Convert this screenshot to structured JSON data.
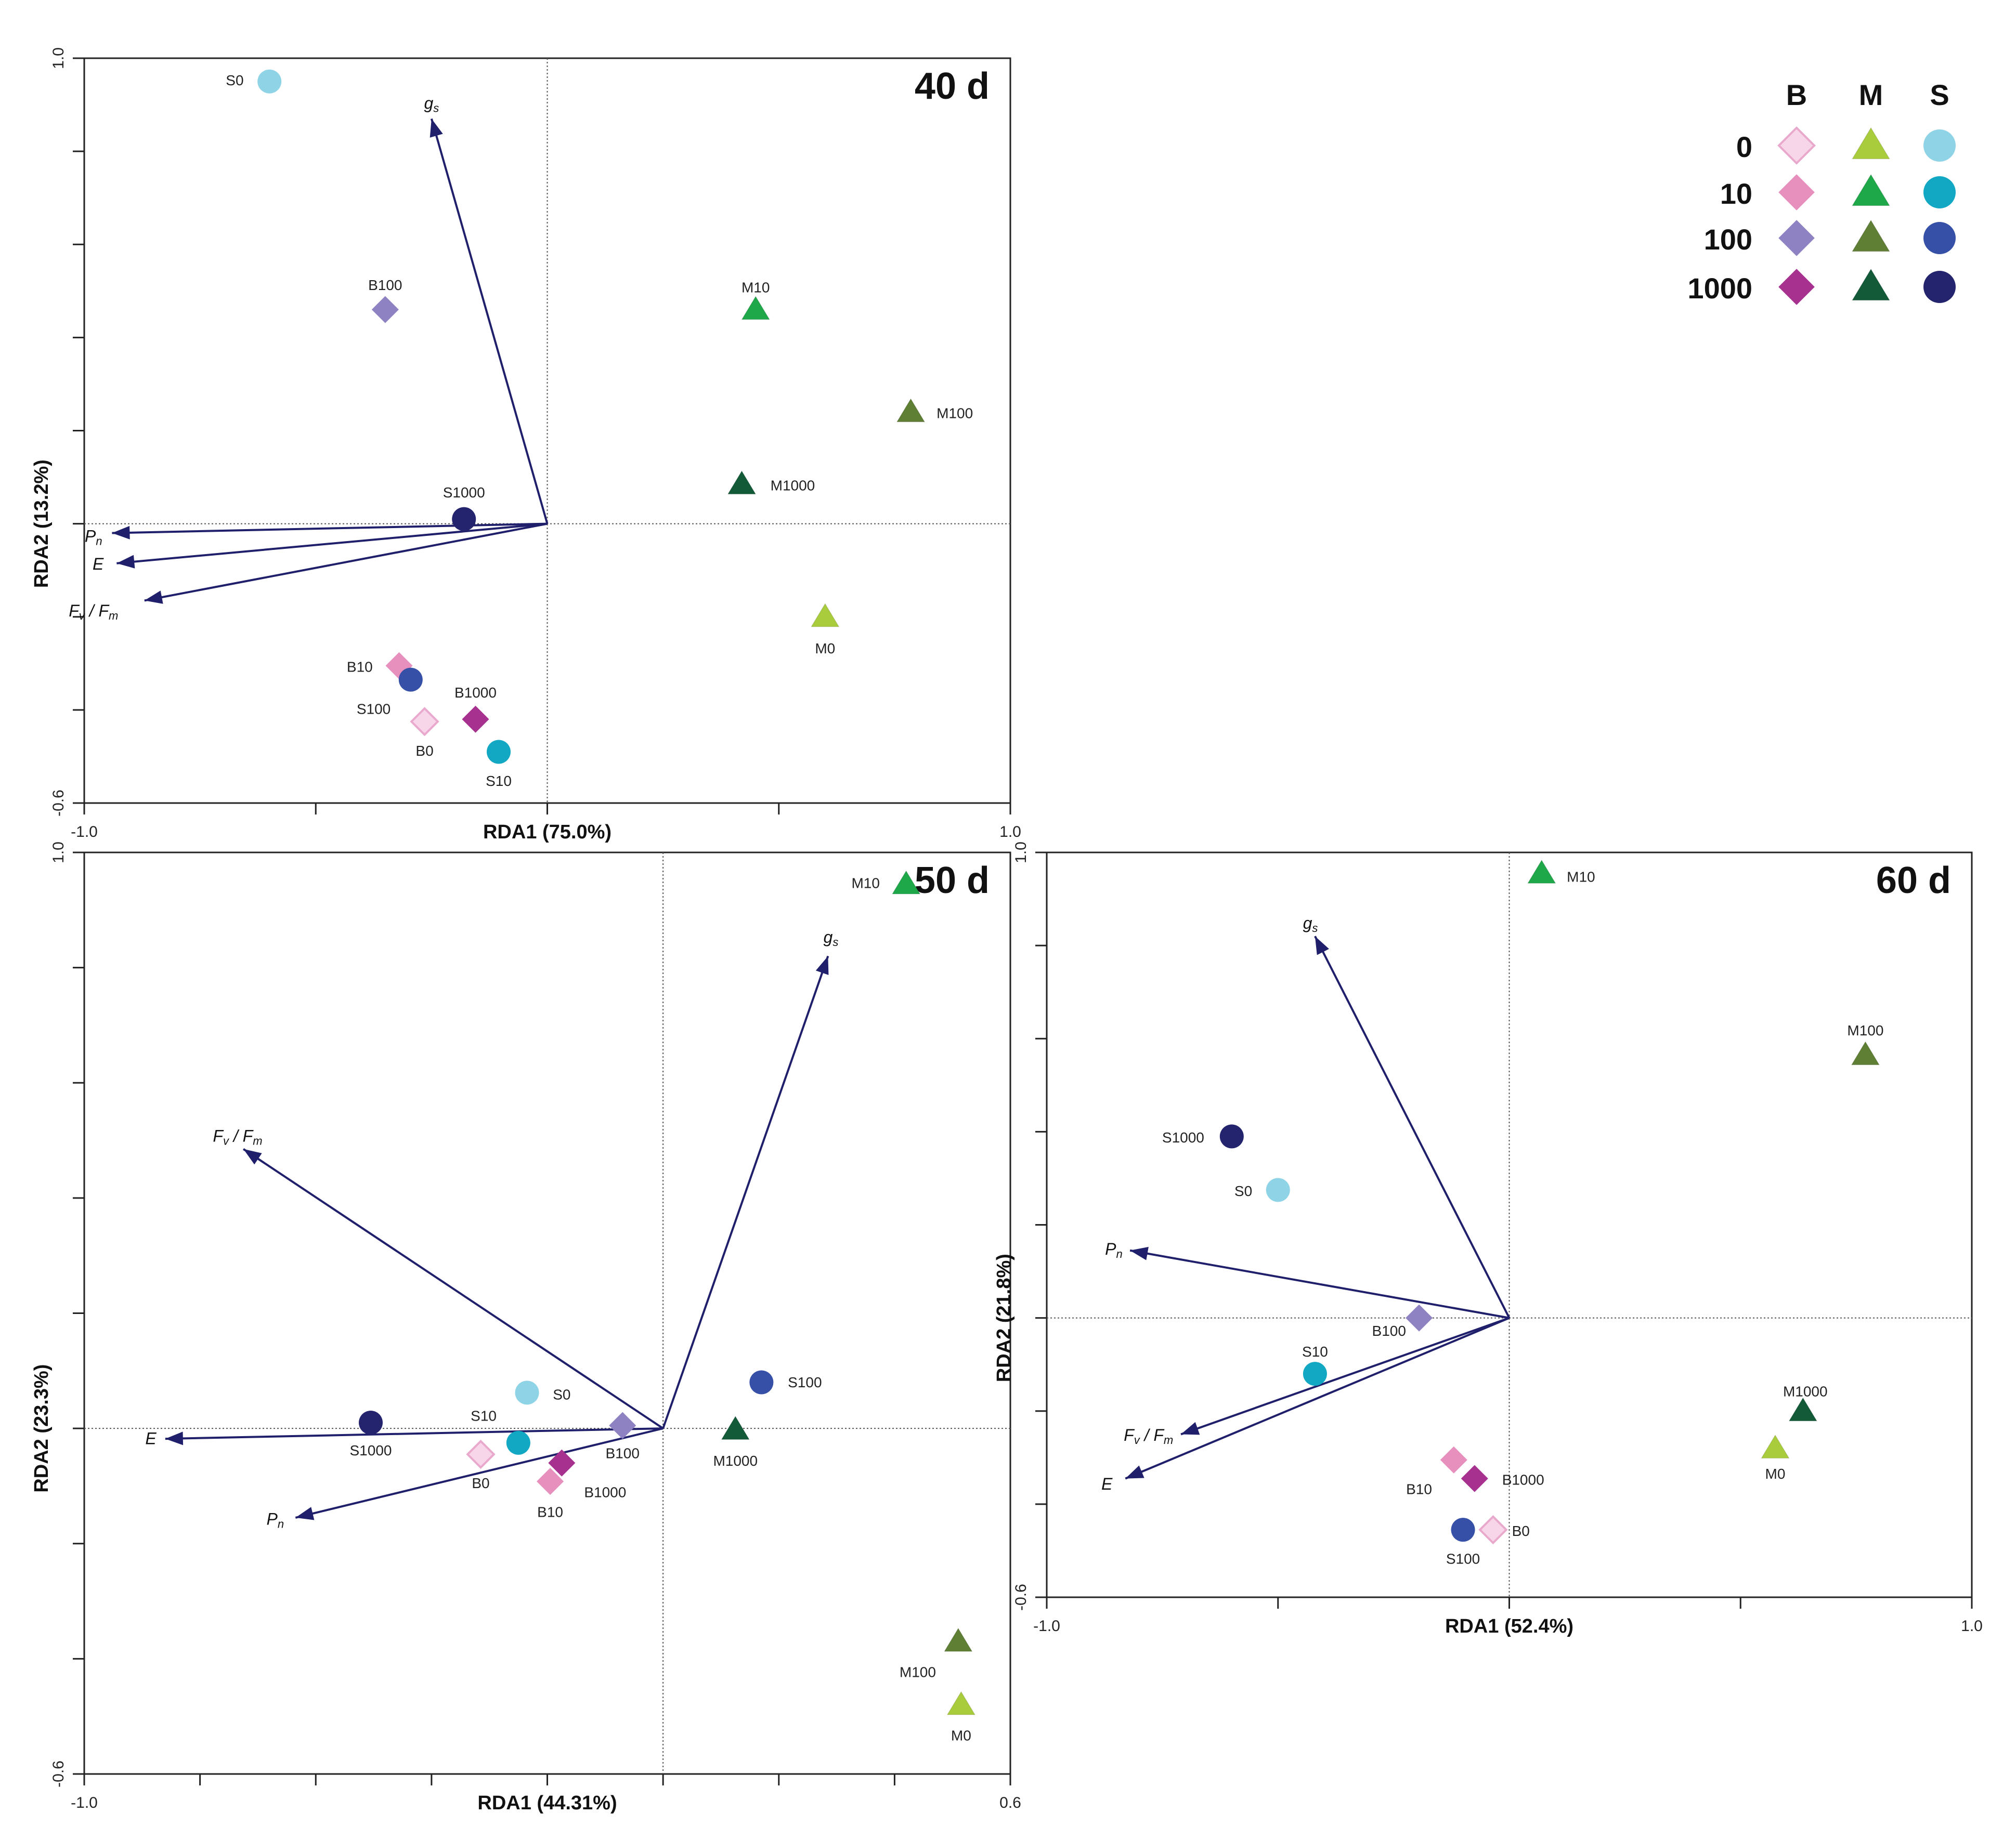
{
  "chart_data": [
    {
      "type": "scatter",
      "subtype": "rda-biplot",
      "title": "40 d",
      "xlabel": "RDA1 (75.0%)",
      "ylabel": "RDA2 (13.2%)",
      "xlim": [
        -1.0,
        1.0
      ],
      "ylim": [
        -0.6,
        1.0
      ],
      "x_tick_labels": [
        {
          "v": -1.0,
          "label": "-1.0"
        },
        {
          "v": 1.0,
          "label": "1.0"
        }
      ],
      "y_tick_labels": [
        {
          "v": 1.0,
          "label": "1.0"
        },
        {
          "v": -0.6,
          "label": "-0.6"
        }
      ],
      "x_minor_ticks": [
        -0.5,
        0,
        0.5
      ],
      "y_minor_ticks": [
        -0.4,
        -0.2,
        0,
        0.2,
        0.4,
        0.6,
        0.8
      ],
      "arrows": [
        {
          "label": "gs",
          "main": "g",
          "sub": "s",
          "x": -0.25,
          "y": 0.87,
          "lx": -0.25,
          "ly": 0.9
        },
        {
          "label": "Pn",
          "main": "P",
          "sub": "n",
          "x": -0.94,
          "y": -0.02,
          "lx": -0.98,
          "ly": -0.03
        },
        {
          "label": "E",
          "main": "E",
          "sub": "",
          "x": -0.93,
          "y": -0.085,
          "lx": -0.97,
          "ly": -0.09
        },
        {
          "label": "Fv / Fm",
          "main": "F",
          "sub": "v",
          "main2": "F",
          "sub2": "m",
          "x": -0.87,
          "y": -0.165,
          "lx": -0.98,
          "ly": -0.19
        }
      ],
      "points": [
        {
          "label": "S0",
          "group": "S",
          "level": "0",
          "x": -0.6,
          "y": 0.95,
          "lx": -0.675,
          "ly": 0.95
        },
        {
          "label": "B100",
          "group": "B",
          "level": "100",
          "x": -0.35,
          "y": 0.46,
          "lx": -0.35,
          "ly": 0.51
        },
        {
          "label": "M10",
          "group": "M",
          "level": "10",
          "x": 0.45,
          "y": 0.46,
          "lx": 0.45,
          "ly": 0.505
        },
        {
          "label": "M100",
          "group": "M",
          "level": "100",
          "x": 0.785,
          "y": 0.24,
          "lx": 0.88,
          "ly": 0.235
        },
        {
          "label": "M1000",
          "group": "M",
          "level": "1000",
          "x": 0.42,
          "y": 0.085,
          "lx": 0.53,
          "ly": 0.08
        },
        {
          "label": "S1000",
          "group": "S",
          "level": "1000",
          "x": -0.18,
          "y": 0.01,
          "lx": -0.18,
          "ly": 0.065
        },
        {
          "label": "M0",
          "group": "M",
          "level": "0",
          "x": 0.6,
          "y": -0.2,
          "lx": 0.6,
          "ly": -0.27
        },
        {
          "label": "B10",
          "group": "B",
          "level": "10",
          "x": -0.32,
          "y": -0.305,
          "lx": -0.405,
          "ly": -0.31
        },
        {
          "label": "S100",
          "group": "S",
          "level": "100",
          "x": -0.295,
          "y": -0.335,
          "lx": -0.375,
          "ly": -0.4
        },
        {
          "label": "B1000",
          "group": "B",
          "level": "1000",
          "x": -0.155,
          "y": -0.42,
          "lx": -0.155,
          "ly": -0.365
        },
        {
          "label": "B0",
          "group": "B",
          "level": "0",
          "x": -0.265,
          "y": -0.425,
          "lx": -0.265,
          "ly": -0.49
        },
        {
          "label": "S10",
          "group": "S",
          "level": "10",
          "x": -0.105,
          "y": -0.49,
          "lx": -0.105,
          "ly": -0.555
        }
      ]
    },
    {
      "type": "scatter",
      "subtype": "rda-biplot",
      "title": "50 d",
      "xlabel": "RDA1 (44.31%)",
      "ylabel": "RDA2 (23.3%)",
      "xlim": [
        -1.0,
        0.6
      ],
      "ylim": [
        -0.6,
        1.0
      ],
      "x_tick_labels": [
        {
          "v": -1.0,
          "label": "-1.0"
        },
        {
          "v": 0.6,
          "label": "0.6"
        }
      ],
      "y_tick_labels": [
        {
          "v": 1.0,
          "label": "1.0"
        },
        {
          "v": -0.6,
          "label": "-0.6"
        }
      ],
      "x_minor_ticks": [
        -0.8,
        -0.6,
        -0.4,
        -0.2,
        0,
        0.2,
        0.4
      ],
      "y_minor_ticks": [
        -0.4,
        -0.2,
        0,
        0.2,
        0.4,
        0.6,
        0.8
      ],
      "arrows": [
        {
          "label": "gs",
          "main": "g",
          "sub": "s",
          "x": 0.285,
          "y": 0.82,
          "lx": 0.29,
          "ly": 0.85
        },
        {
          "label": "Fv / Fm",
          "main": "F",
          "sub": "v",
          "main2": "F",
          "sub2": "m",
          "x": -0.725,
          "y": 0.485,
          "lx": -0.735,
          "ly": 0.505
        },
        {
          "label": "E",
          "main": "E",
          "sub": "",
          "x": -0.86,
          "y": -0.018,
          "lx": -0.885,
          "ly": -0.02
        },
        {
          "label": "Pn",
          "main": "P",
          "sub": "n",
          "x": -0.635,
          "y": -0.155,
          "lx": -0.67,
          "ly": -0.16
        }
      ],
      "points": [
        {
          "label": "M10",
          "group": "M",
          "level": "10",
          "x": 0.42,
          "y": 0.945,
          "lx": 0.35,
          "ly": 0.945
        },
        {
          "label": "S100",
          "group": "S",
          "level": "100",
          "x": 0.17,
          "y": 0.08,
          "lx": 0.245,
          "ly": 0.078
        },
        {
          "label": "S0",
          "group": "S",
          "level": "0",
          "x": -0.235,
          "y": 0.062,
          "lx": -0.175,
          "ly": 0.057
        },
        {
          "label": "S1000",
          "group": "S",
          "level": "1000",
          "x": -0.505,
          "y": 0.01,
          "lx": -0.505,
          "ly": -0.04
        },
        {
          "label": "S10",
          "group": "S",
          "level": "10",
          "x": -0.25,
          "y": -0.025,
          "lx": -0.31,
          "ly": 0.02
        },
        {
          "label": "B100",
          "group": "B",
          "level": "100",
          "x": -0.07,
          "y": 0.005,
          "lx": -0.07,
          "ly": -0.045
        },
        {
          "label": "M1000",
          "group": "M",
          "level": "1000",
          "x": 0.125,
          "y": -0.002,
          "lx": 0.125,
          "ly": -0.058
        },
        {
          "label": "B0",
          "group": "B",
          "level": "0",
          "x": -0.315,
          "y": -0.045,
          "lx": -0.315,
          "ly": -0.097
        },
        {
          "label": "B1000",
          "group": "B",
          "level": "1000",
          "x": -0.175,
          "y": -0.06,
          "lx": -0.1,
          "ly": -0.113
        },
        {
          "label": "B10",
          "group": "B",
          "level": "10",
          "x": -0.195,
          "y": -0.092,
          "lx": -0.195,
          "ly": -0.147
        },
        {
          "label": "M100",
          "group": "M",
          "level": "100",
          "x": 0.51,
          "y": -0.37,
          "lx": 0.44,
          "ly": -0.425
        },
        {
          "label": "M0",
          "group": "M",
          "level": "0",
          "x": 0.515,
          "y": -0.48,
          "lx": 0.515,
          "ly": -0.535
        }
      ]
    },
    {
      "type": "scatter",
      "subtype": "rda-biplot",
      "title": "60 d",
      "xlabel": "RDA1 (52.4%)",
      "ylabel": "RDA2 (21.8%)",
      "xlim": [
        -1.0,
        1.0
      ],
      "ylim": [
        -0.6,
        1.0
      ],
      "x_tick_labels": [
        {
          "v": -1.0,
          "label": "-1.0"
        },
        {
          "v": 1.0,
          "label": "1.0"
        }
      ],
      "y_tick_labels": [
        {
          "v": 1.0,
          "label": "1.0"
        },
        {
          "v": -0.6,
          "label": "-0.6"
        }
      ],
      "x_minor_ticks": [
        -0.5,
        0,
        0.5
      ],
      "y_minor_ticks": [
        -0.4,
        -0.2,
        0,
        0.2,
        0.4,
        0.6,
        0.8
      ],
      "arrows": [
        {
          "label": "gs",
          "main": "g",
          "sub": "s",
          "x": -0.42,
          "y": 0.82,
          "lx": -0.43,
          "ly": 0.845
        },
        {
          "label": "Pn",
          "main": "P",
          "sub": "n",
          "x": -0.82,
          "y": 0.145,
          "lx": -0.855,
          "ly": 0.145
        },
        {
          "label": "Fv / Fm",
          "main": "F",
          "sub": "v",
          "main2": "F",
          "sub2": "m",
          "x": -0.71,
          "y": -0.25,
          "lx": -0.78,
          "ly": -0.255
        },
        {
          "label": "E",
          "main": "E",
          "sub": "",
          "x": -0.83,
          "y": -0.345,
          "lx": -0.87,
          "ly": -0.36
        }
      ],
      "points": [
        {
          "label": "M10",
          "group": "M",
          "level": "10",
          "x": 0.07,
          "y": 0.955,
          "lx": 0.155,
          "ly": 0.945
        },
        {
          "label": "M100",
          "group": "M",
          "level": "100",
          "x": 0.77,
          "y": 0.565,
          "lx": 0.77,
          "ly": 0.615
        },
        {
          "label": "S1000",
          "group": "S",
          "level": "1000",
          "x": -0.6,
          "y": 0.39,
          "lx": -0.705,
          "ly": 0.385
        },
        {
          "label": "S0",
          "group": "S",
          "level": "0",
          "x": -0.5,
          "y": 0.275,
          "lx": -0.575,
          "ly": 0.27
        },
        {
          "label": "B100",
          "group": "B",
          "level": "100",
          "x": -0.195,
          "y": 0.0,
          "lx": -0.26,
          "ly": -0.03
        },
        {
          "label": "S10",
          "group": "S",
          "level": "10",
          "x": -0.42,
          "y": -0.12,
          "lx": -0.42,
          "ly": -0.075
        },
        {
          "label": "M1000",
          "group": "M",
          "level": "1000",
          "x": 0.635,
          "y": -0.2,
          "lx": 0.64,
          "ly": -0.16
        },
        {
          "label": "M0",
          "group": "M",
          "level": "0",
          "x": 0.575,
          "y": -0.28,
          "lx": 0.575,
          "ly": -0.337
        },
        {
          "label": "B10",
          "group": "B",
          "level": "10",
          "x": -0.12,
          "y": -0.305,
          "lx": -0.195,
          "ly": -0.37
        },
        {
          "label": "B1000",
          "group": "B",
          "level": "1000",
          "x": -0.075,
          "y": -0.345,
          "lx": 0.03,
          "ly": -0.35
        },
        {
          "label": "S100",
          "group": "S",
          "level": "100",
          "x": -0.1,
          "y": -0.455,
          "lx": -0.1,
          "ly": -0.52
        },
        {
          "label": "B0",
          "group": "B",
          "level": "0",
          "x": -0.035,
          "y": -0.455,
          "lx": 0.025,
          "ly": -0.46
        }
      ]
    }
  ],
  "legend": {
    "columns": [
      "B",
      "M",
      "S"
    ],
    "rows": [
      "0",
      "10",
      "100",
      "1000"
    ]
  },
  "colors": {
    "arrow": "#1f1f6b",
    "B": {
      "0": "#f8d6ea",
      "10": "#e78fbd",
      "100": "#8f82c2",
      "1000": "#a6318f"
    },
    "M": {
      "0": "#a8cc3c",
      "10": "#1fa84a",
      "100": "#5f7f34",
      "1000": "#125a38"
    },
    "S": {
      "0": "#8fd3e6",
      "10": "#12a8c4",
      "100": "#3550a6",
      "1000": "#24236e"
    }
  }
}
